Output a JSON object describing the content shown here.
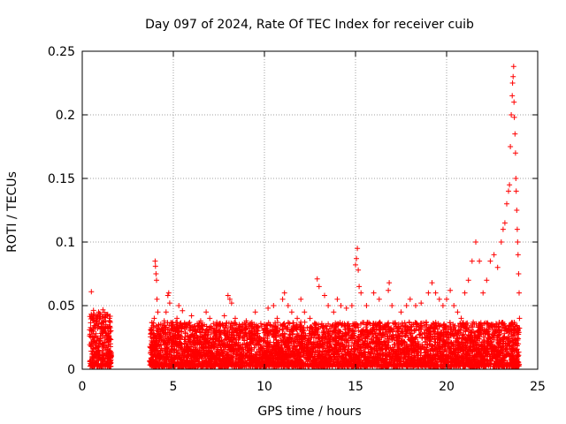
{
  "chart_data": {
    "type": "scatter",
    "title": "Day 097 of 2024, Rate Of TEC Index for receiver cuib",
    "xlabel": "GPS time / hours",
    "ylabel": "ROTI / TECUs",
    "xlim": [
      0,
      25
    ],
    "ylim": [
      0,
      0.25
    ],
    "grid": true,
    "marker": "+",
    "marker_color": "#ff0000",
    "x_ticks": [
      0,
      5,
      10,
      15,
      20,
      25
    ],
    "x_tick_labels": [
      "0",
      "5",
      "10",
      "15",
      "20",
      "25"
    ],
    "y_ticks": [
      0,
      0.05,
      0.1,
      0.15,
      0.2,
      0.25
    ],
    "y_tick_labels": [
      "0",
      "0.05",
      "0.1",
      "0.15",
      "0.2",
      "0.25"
    ],
    "series": [
      {
        "name": "ROTI",
        "points": [
          [
            0.5,
            0.061
          ],
          [
            0.5,
            0.018
          ],
          [
            0.55,
            0.025
          ],
          [
            0.6,
            0.03
          ],
          [
            0.65,
            0.022
          ],
          [
            0.7,
            0.034
          ],
          [
            0.75,
            0.028
          ],
          [
            0.8,
            0.038
          ],
          [
            0.85,
            0.042
          ],
          [
            0.9,
            0.045
          ],
          [
            0.95,
            0.04
          ],
          [
            1.0,
            0.043
          ],
          [
            1.05,
            0.036
          ],
          [
            1.1,
            0.041
          ],
          [
            1.15,
            0.033
          ],
          [
            1.2,
            0.038
          ],
          [
            1.25,
            0.03
          ],
          [
            1.3,
            0.035
          ],
          [
            1.35,
            0.027
          ],
          [
            1.4,
            0.032
          ],
          [
            1.5,
            0.024
          ],
          [
            1.55,
            0.02
          ],
          [
            0.7,
            0.012
          ],
          [
            0.9,
            0.015
          ],
          [
            1.1,
            0.014
          ],
          [
            1.3,
            0.011
          ],
          [
            1.5,
            0.013
          ],
          [
            0.6,
            0.009
          ],
          [
            1.0,
            0.008
          ],
          [
            1.4,
            0.009
          ],
          [
            3.8,
            0.03
          ],
          [
            3.85,
            0.015
          ],
          [
            3.9,
            0.025
          ],
          [
            3.95,
            0.04
          ],
          [
            4.0,
            0.085
          ],
          [
            4.02,
            0.081
          ],
          [
            4.05,
            0.075
          ],
          [
            4.08,
            0.07
          ],
          [
            4.1,
            0.055
          ],
          [
            4.15,
            0.045
          ],
          [
            4.2,
            0.035
          ],
          [
            4.3,
            0.028
          ],
          [
            4.4,
            0.032
          ],
          [
            4.5,
            0.038
          ],
          [
            4.6,
            0.045
          ],
          [
            4.7,
            0.058
          ],
          [
            4.75,
            0.06
          ],
          [
            4.8,
            0.052
          ],
          [
            4.9,
            0.03
          ],
          [
            4.2,
            0.012
          ],
          [
            4.5,
            0.01
          ],
          [
            5.2,
            0.04
          ],
          [
            5.3,
            0.05
          ],
          [
            5.5,
            0.046
          ],
          [
            5.7,
            0.035
          ],
          [
            6.0,
            0.042
          ],
          [
            6.2,
            0.03
          ],
          [
            6.5,
            0.038
          ],
          [
            6.8,
            0.045
          ],
          [
            7.0,
            0.04
          ],
          [
            7.2,
            0.036
          ],
          [
            7.5,
            0.03
          ],
          [
            7.8,
            0.042
          ],
          [
            8.0,
            0.058
          ],
          [
            8.1,
            0.055
          ],
          [
            8.2,
            0.052
          ],
          [
            8.4,
            0.04
          ],
          [
            8.7,
            0.034
          ],
          [
            9.0,
            0.038
          ],
          [
            9.3,
            0.03
          ],
          [
            9.5,
            0.045
          ],
          [
            9.8,
            0.036
          ],
          [
            10.0,
            0.035
          ],
          [
            10.2,
            0.048
          ],
          [
            10.5,
            0.05
          ],
          [
            10.7,
            0.04
          ],
          [
            11.0,
            0.055
          ],
          [
            11.1,
            0.06
          ],
          [
            11.3,
            0.05
          ],
          [
            11.5,
            0.045
          ],
          [
            11.8,
            0.04
          ],
          [
            12.0,
            0.055
          ],
          [
            12.2,
            0.045
          ],
          [
            12.5,
            0.04
          ],
          [
            12.9,
            0.071
          ],
          [
            13.0,
            0.065
          ],
          [
            13.3,
            0.058
          ],
          [
            13.5,
            0.05
          ],
          [
            13.8,
            0.045
          ],
          [
            14.0,
            0.055
          ],
          [
            14.2,
            0.05
          ],
          [
            14.5,
            0.048
          ],
          [
            14.8,
            0.05
          ],
          [
            15.0,
            0.082
          ],
          [
            15.05,
            0.087
          ],
          [
            15.1,
            0.095
          ],
          [
            15.15,
            0.078
          ],
          [
            15.2,
            0.065
          ],
          [
            15.3,
            0.06
          ],
          [
            15.6,
            0.05
          ],
          [
            16.0,
            0.06
          ],
          [
            16.3,
            0.055
          ],
          [
            16.8,
            0.062
          ],
          [
            16.85,
            0.068
          ],
          [
            17.0,
            0.05
          ],
          [
            17.5,
            0.045
          ],
          [
            17.8,
            0.05
          ],
          [
            18.0,
            0.055
          ],
          [
            18.3,
            0.05
          ],
          [
            18.6,
            0.052
          ],
          [
            19.0,
            0.06
          ],
          [
            19.2,
            0.068
          ],
          [
            19.4,
            0.06
          ],
          [
            19.6,
            0.055
          ],
          [
            19.8,
            0.05
          ],
          [
            20.0,
            0.055
          ],
          [
            20.2,
            0.062
          ],
          [
            20.4,
            0.05
          ],
          [
            20.6,
            0.045
          ],
          [
            20.8,
            0.04
          ],
          [
            21.0,
            0.06
          ],
          [
            21.2,
            0.07
          ],
          [
            21.4,
            0.085
          ],
          [
            21.6,
            0.1
          ],
          [
            21.8,
            0.085
          ],
          [
            22.0,
            0.06
          ],
          [
            22.2,
            0.07
          ],
          [
            22.4,
            0.085
          ],
          [
            22.6,
            0.09
          ],
          [
            22.8,
            0.08
          ],
          [
            23.0,
            0.1
          ],
          [
            23.1,
            0.11
          ],
          [
            23.2,
            0.115
          ],
          [
            23.3,
            0.13
          ],
          [
            23.4,
            0.14
          ],
          [
            23.45,
            0.145
          ],
          [
            23.5,
            0.175
          ],
          [
            23.55,
            0.2
          ],
          [
            23.6,
            0.215
          ],
          [
            23.62,
            0.225
          ],
          [
            23.65,
            0.23
          ],
          [
            23.68,
            0.238
          ],
          [
            23.7,
            0.21
          ],
          [
            23.72,
            0.198
          ],
          [
            23.75,
            0.185
          ],
          [
            23.78,
            0.17
          ],
          [
            23.8,
            0.15
          ],
          [
            23.82,
            0.14
          ],
          [
            23.85,
            0.125
          ],
          [
            23.88,
            0.11
          ],
          [
            23.9,
            0.1
          ],
          [
            23.92,
            0.09
          ],
          [
            23.95,
            0.075
          ],
          [
            23.98,
            0.06
          ],
          [
            24.0,
            0.04
          ]
        ]
      }
    ]
  }
}
